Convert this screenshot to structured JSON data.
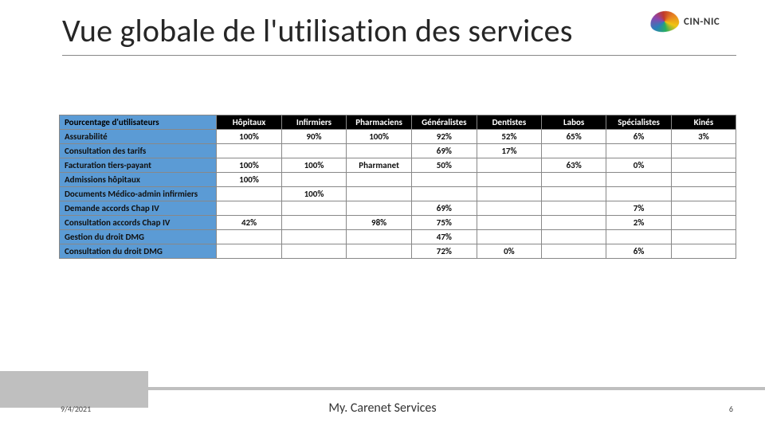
{
  "title": "Vue globale de l'utilisation des services",
  "logo_text": "CIN-NIC",
  "footer": {
    "date": "9/4/2021",
    "center": "My. Carenet Services",
    "page": "6"
  },
  "table": {
    "corner": "Pourcentage d'utilisateurs",
    "columns": [
      "Hôpitaux",
      "Infirmiers",
      "Pharmaciens",
      "Généralistes",
      "Dentistes",
      "Labos",
      "Spécialistes",
      "Kinés"
    ],
    "row_labels": [
      "Assurabilité",
      "Consultation des tarifs",
      "Facturation tiers-payant",
      "Admissions hôpitaux",
      "Documents Médico-admin infirmiers",
      "Demande accords Chap IV",
      "Consultation accords Chap IV",
      "Gestion du droit DMG",
      "Consultation du droit DMG"
    ],
    "cells": [
      [
        "100%",
        "90%",
        "100%",
        "92%",
        "52%",
        "65%",
        "6%",
        "3%"
      ],
      [
        "",
        "",
        "",
        "69%",
        "17%",
        "",
        "",
        ""
      ],
      [
        "100%",
        "100%",
        "Pharmanet",
        "50%",
        "",
        "63%",
        "0%",
        ""
      ],
      [
        "100%",
        "",
        "",
        "",
        "",
        "",
        "",
        ""
      ],
      [
        "",
        "100%",
        "",
        "",
        "",
        "",
        "",
        ""
      ],
      [
        "",
        "",
        "",
        "69%",
        "",
        "",
        "7%",
        ""
      ],
      [
        "42%",
        "",
        "98%",
        "75%",
        "",
        "",
        "2%",
        ""
      ],
      [
        "",
        "",
        "",
        "47%",
        "",
        "",
        "",
        ""
      ],
      [
        "",
        "",
        "",
        "72%",
        "0%",
        "",
        "6%",
        ""
      ]
    ],
    "header_bg": "#000000",
    "header_fg": "#ffffff",
    "row_header_bg": "#5b9bd5",
    "border_color": "#888888",
    "font_size_pt": 8
  }
}
